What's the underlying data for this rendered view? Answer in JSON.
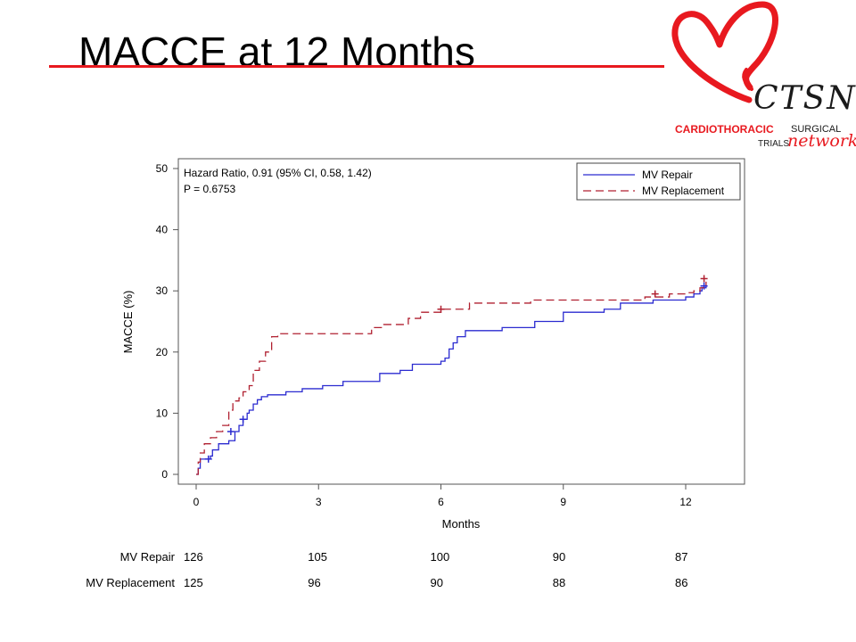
{
  "slide": {
    "title": "MACCE at 12 Months"
  },
  "logo": {
    "brand": "CTSN",
    "line1": "CARDIOTHORACIC",
    "line1b": "SURGICAL",
    "line2": "TRIALS",
    "line2b": "network",
    "colors": {
      "heart": "#e8191f",
      "text": "#1a1a1a"
    }
  },
  "chart_data": {
    "type": "line",
    "step": true,
    "xlabel": "Months",
    "ylabel": "MACCE (%)",
    "xlim": [
      0,
      13.3
    ],
    "ylim": [
      0,
      50
    ],
    "xticks": [
      "0",
      "3",
      "6",
      "9",
      "12"
    ],
    "xtick_values": [
      0,
      3,
      6,
      9,
      12
    ],
    "yticks": [
      "0",
      "10",
      "20",
      "30",
      "40",
      "50"
    ],
    "ytick_values": [
      0,
      10,
      20,
      30,
      40,
      50
    ],
    "annotation": {
      "line1": "Hazard Ratio, 0.91 (95% CI, 0.58, 1.42)",
      "line2": "P = 0.6753"
    },
    "legend_position": "top-right",
    "series": [
      {
        "name": "MV Repair",
        "color": "#2b2bd0",
        "dash": "solid",
        "x": [
          0,
          0.05,
          0.1,
          0.35,
          0.4,
          0.55,
          0.8,
          0.95,
          1.05,
          1.15,
          1.25,
          1.3,
          1.4,
          1.5,
          1.6,
          1.75,
          2.2,
          2.6,
          3.1,
          3.6,
          4.5,
          5.0,
          5.3,
          6.0,
          6.1,
          6.2,
          6.3,
          6.4,
          6.6,
          7.5,
          8.3,
          9.0,
          10.0,
          10.4,
          11.2,
          12.0,
          12.2,
          12.35,
          12.4,
          12.5
        ],
        "y": [
          0,
          1,
          2.5,
          3,
          4,
          5,
          5.5,
          7,
          8,
          9,
          10,
          10.5,
          11.5,
          12.2,
          12.7,
          13,
          13.5,
          14,
          14.5,
          15.2,
          16.5,
          17,
          18,
          18.5,
          19,
          20.5,
          21.5,
          22.5,
          23.5,
          24,
          25,
          26.5,
          27,
          28,
          28.5,
          29,
          29.5,
          30,
          30.5,
          31
        ]
      },
      {
        "name": "MV Replacement",
        "color": "#b02030",
        "dash": "dashed",
        "x": [
          0,
          0.05,
          0.1,
          0.2,
          0.35,
          0.5,
          0.65,
          0.8,
          0.9,
          1.05,
          1.15,
          1.3,
          1.4,
          1.55,
          1.7,
          1.85,
          2.0,
          4.3,
          4.6,
          5.2,
          5.5,
          6.0,
          6.7,
          8.2,
          11.0,
          11.6,
          12.0,
          12.2,
          12.35,
          12.5
        ],
        "y": [
          0,
          2,
          3.5,
          5,
          6,
          7,
          8,
          10.5,
          12,
          12.5,
          13.5,
          14.5,
          17,
          18.5,
          20,
          22.5,
          23,
          24,
          24.5,
          25.5,
          26.5,
          27,
          28,
          28.5,
          29,
          29.5,
          29.7,
          30,
          30.5,
          31.5
        ]
      }
    ],
    "censor_marks": {
      "MV Repair": [
        [
          0.3,
          2.5
        ],
        [
          0.85,
          7
        ],
        [
          1.15,
          9
        ],
        [
          12.45,
          30.8
        ]
      ],
      "MV Replacement": [
        [
          6.0,
          27
        ],
        [
          11.25,
          29.5
        ],
        [
          12.45,
          32
        ]
      ]
    },
    "risk_table": {
      "rows": [
        {
          "label": "MV Repair",
          "values": [
            "126",
            "105",
            "100",
            "90",
            "87"
          ]
        },
        {
          "label": "MV Replacement",
          "values": [
            "125",
            "96",
            "90",
            "88",
            "86"
          ]
        }
      ],
      "x": [
        0,
        3,
        6,
        9,
        12
      ]
    }
  }
}
